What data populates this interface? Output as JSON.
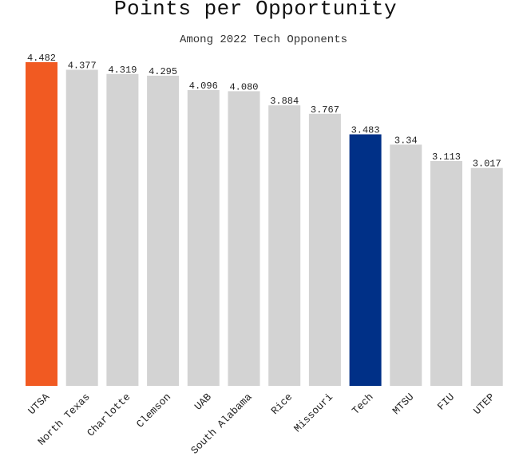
{
  "chart_data": {
    "type": "bar",
    "title": "Points per Opportunity",
    "subtitle": "Among 2022 Tech Opponents",
    "xlabel": "",
    "ylabel": "",
    "ylim": [
      0,
      4.482
    ],
    "grid": false,
    "categories": [
      "UTSA",
      "North Texas",
      "Charlotte",
      "Clemson",
      "UAB",
      "South Alabama",
      "Rice",
      "Missouri",
      "Tech",
      "MTSU",
      "FIU",
      "UTEP"
    ],
    "values": [
      4.482,
      4.377,
      4.319,
      4.295,
      4.096,
      4.08,
      3.884,
      3.767,
      3.483,
      3.34,
      3.113,
      3.017
    ],
    "value_labels": [
      "4.482",
      "4.377",
      "4.319",
      "4.295",
      "4.096",
      "4.080",
      "3.884",
      "3.767",
      "3.483",
      "3.34",
      "3.113",
      "3.017"
    ],
    "colors": {
      "default": "#d3d3d3",
      "highlight_UTSA": "#f15a22",
      "highlight_Tech": "#003087"
    },
    "bar_colors": [
      "#f15a22",
      "#d3d3d3",
      "#d3d3d3",
      "#d3d3d3",
      "#d3d3d3",
      "#d3d3d3",
      "#d3d3d3",
      "#d3d3d3",
      "#003087",
      "#d3d3d3",
      "#d3d3d3",
      "#d3d3d3"
    ]
  }
}
